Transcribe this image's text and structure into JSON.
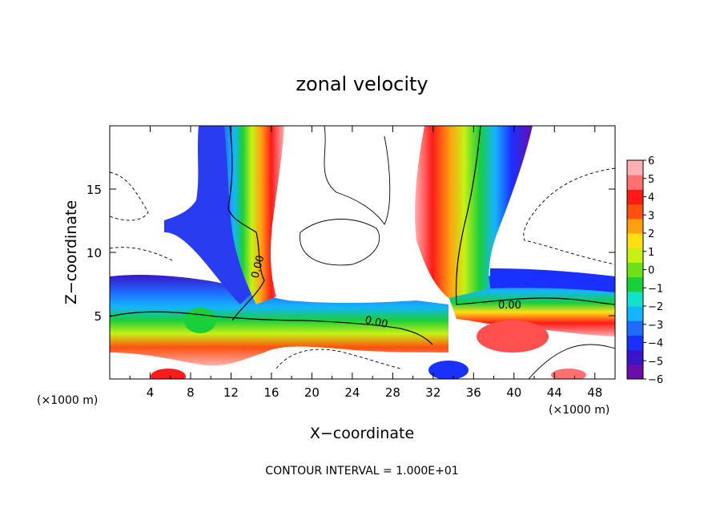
{
  "chart_data": {
    "type": "heatmap",
    "title": "zonal velocity",
    "xlabel": "X−coordinate",
    "ylabel": "Z−coordinate",
    "x_unit_label": "(×1000 m)",
    "y_unit_label": "(×1000 m)",
    "xlim": [
      0,
      50
    ],
    "ylim": [
      0,
      20
    ],
    "x_ticks": [
      4,
      8,
      12,
      16,
      20,
      24,
      28,
      32,
      36,
      40,
      44,
      48
    ],
    "y_ticks": [
      5,
      10,
      15
    ],
    "footnote": "CONTOUR INTERVAL = 1.000E+01",
    "contour_labels": [
      "0.00",
      "0.00",
      "0.00"
    ],
    "colorbar": {
      "levels": [
        "6",
        "5",
        "4",
        "3",
        "2",
        "1",
        "0",
        "−1",
        "−2",
        "−3",
        "−4",
        "−5",
        "−6"
      ],
      "min": -6,
      "max": 6,
      "colors": [
        "#6a0dad",
        "#3a14c8",
        "#1a30ff",
        "#1f6cff",
        "#15b4ff",
        "#12e3c8",
        "#19cf3a",
        "#6fe018",
        "#c8f015",
        "#ffe015",
        "#ffa010",
        "#ff5010",
        "#ff1a1a",
        "#ff7070",
        "#ffb0b0"
      ]
    },
    "features": [
      {
        "name": "positive-jet-left",
        "value": 6
      },
      {
        "name": "negative-jet-left",
        "value": -6
      },
      {
        "name": "positive-jet-right",
        "value": 6
      },
      {
        "name": "negative-jet-right",
        "value": -6
      },
      {
        "name": "low-level-shear-band",
        "value": 0
      }
    ]
  }
}
